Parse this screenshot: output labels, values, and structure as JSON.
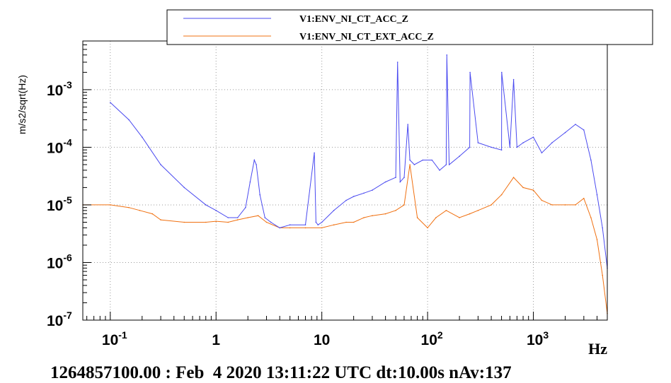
{
  "chart_data": {
    "type": "line",
    "xscale": "log",
    "yscale": "log",
    "xlim": [
      0.055,
      5000
    ],
    "ylim": [
      1e-07,
      0.007
    ],
    "xlabel": "Hz",
    "ylabel": "m/s2/sqrt(Hz)",
    "grid": true,
    "legend_position": "top-right",
    "x_tick_labels": [
      {
        "value": 0.1,
        "base": "10",
        "exp": "-1"
      },
      {
        "value": 1,
        "base": "1",
        "exp": ""
      },
      {
        "value": 10,
        "base": "10",
        "exp": ""
      },
      {
        "value": 100,
        "base": "10",
        "exp": "2"
      },
      {
        "value": 1000,
        "base": "10",
        "exp": "3"
      }
    ],
    "y_tick_labels": [
      {
        "value": 1e-07,
        "base": "10",
        "exp": "-7"
      },
      {
        "value": 1e-06,
        "base": "10",
        "exp": "-6"
      },
      {
        "value": 1e-05,
        "base": "10",
        "exp": "-5"
      },
      {
        "value": 0.0001,
        "base": "10",
        "exp": "-4"
      },
      {
        "value": 0.001,
        "base": "10",
        "exp": "-3"
      }
    ],
    "series": [
      {
        "name": "V1:ENV_NI_CT_ACC_Z",
        "color": "#4a4af0",
        "x": [
          0.1,
          0.15,
          0.2,
          0.3,
          0.5,
          0.8,
          1.0,
          1.3,
          1.6,
          1.9,
          2.1,
          2.3,
          2.4,
          2.6,
          2.9,
          3.3,
          4.0,
          5.0,
          7.0,
          8.5,
          8.8,
          9.2,
          10,
          13,
          17,
          20,
          25,
          30,
          40,
          50,
          52,
          55,
          60,
          65,
          68,
          75,
          90,
          110,
          130,
          150,
          152,
          160,
          200,
          250,
          252,
          300,
          400,
          500,
          502,
          600,
          650,
          700,
          800,
          1000,
          1200,
          1500,
          2000,
          2500,
          3000,
          3500,
          4000,
          4500,
          5000
        ],
        "y": [
          0.0006,
          0.0003,
          0.00015,
          5e-05,
          2e-05,
          1e-05,
          8e-06,
          6e-06,
          6e-06,
          9e-06,
          2.5e-05,
          6e-05,
          5e-05,
          1.5e-05,
          6e-06,
          5e-06,
          4e-06,
          4.5e-06,
          4.5e-06,
          8e-05,
          5e-06,
          4.5e-06,
          5e-06,
          8e-06,
          1.2e-05,
          1.4e-05,
          1.6e-05,
          1.8e-05,
          2.5e-05,
          3e-05,
          0.003,
          2.5e-05,
          3e-05,
          0.00025,
          6e-05,
          5e-05,
          6e-05,
          6e-05,
          4e-05,
          5e-05,
          0.004,
          5e-05,
          7e-05,
          0.0001,
          0.002,
          0.00012,
          0.0001,
          9e-05,
          0.002,
          0.0001,
          0.0015,
          0.0001,
          0.00012,
          0.00015,
          8e-05,
          0.00012,
          0.00018,
          0.00025,
          0.0002,
          6e-05,
          1.5e-05,
          4e-06,
          8e-07
        ]
      },
      {
        "name": "V1:ENV_NI_CT_EXT_ACC_Z",
        "color": "#f07010",
        "x": [
          0.055,
          0.1,
          0.15,
          0.19,
          0.25,
          0.3,
          0.5,
          0.8,
          1.0,
          1.3,
          1.6,
          2.0,
          2.5,
          3.0,
          4.0,
          5.0,
          7.0,
          10,
          13,
          17,
          20,
          25,
          30,
          40,
          50,
          60,
          68,
          80,
          100,
          120,
          150,
          200,
          250,
          300,
          400,
          500,
          650,
          800,
          1000,
          1200,
          1500,
          2000,
          2500,
          3000,
          3500,
          4000,
          4500,
          5000
        ],
        "y": [
          1e-05,
          1e-05,
          9e-06,
          8e-06,
          7e-06,
          5.5e-06,
          5e-06,
          5e-06,
          5.2e-06,
          5e-06,
          5.5e-06,
          6e-06,
          6.5e-06,
          5e-06,
          4e-06,
          4e-06,
          4e-06,
          4e-06,
          4.5e-06,
          5e-06,
          5e-06,
          6e-06,
          6.5e-06,
          7e-06,
          8e-06,
          1e-05,
          5e-05,
          6e-06,
          4e-06,
          6e-06,
          8e-06,
          6e-06,
          7e-06,
          8e-06,
          1e-05,
          1.5e-05,
          3e-05,
          2e-05,
          1.8e-05,
          1.2e-05,
          1e-05,
          1e-05,
          1e-05,
          1.3e-05,
          6e-06,
          2.5e-06,
          6e-07,
          1.3e-07
        ]
      }
    ]
  },
  "footer": {
    "text": "1264857100.00 : Feb  4 2020 13:11:22 UTC dt:10.00s nAv:137"
  }
}
